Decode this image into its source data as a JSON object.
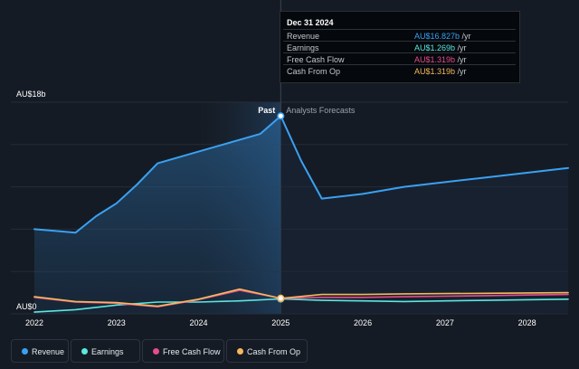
{
  "chart_data": {
    "type": "line",
    "y_axis_labels": {
      "top": "AU$18b",
      "bottom": "AU$0"
    },
    "ylim": [
      0,
      18
    ],
    "xlim": [
      2022.0,
      2028.5
    ],
    "x_ticks": [
      "2022",
      "2023",
      "2024",
      "2025",
      "2026",
      "2027",
      "2028"
    ],
    "annotations": {
      "past": "Past",
      "forecast": "Analysts Forecasts",
      "divider_x": 2025.0
    },
    "series": [
      {
        "name": "Revenue",
        "color": "#3aa1f2",
        "points": [
          [
            2022.0,
            7.2
          ],
          [
            2022.25,
            7.05
          ],
          [
            2022.5,
            6.9
          ],
          [
            2022.75,
            8.3
          ],
          [
            2023.0,
            9.4
          ],
          [
            2023.25,
            11.0
          ],
          [
            2023.5,
            12.8
          ],
          [
            2023.75,
            13.3
          ],
          [
            2024.0,
            13.8
          ],
          [
            2024.25,
            14.3
          ],
          [
            2024.5,
            14.8
          ],
          [
            2024.75,
            15.3
          ],
          [
            2025.0,
            16.827
          ],
          [
            2025.25,
            13.0
          ],
          [
            2025.5,
            9.8
          ],
          [
            2026.0,
            10.2
          ],
          [
            2026.5,
            10.8
          ],
          [
            2027.0,
            11.2
          ],
          [
            2027.5,
            11.6
          ],
          [
            2028.0,
            12.0
          ],
          [
            2028.5,
            12.4
          ]
        ]
      },
      {
        "name": "Earnings",
        "color": "#5ce6e0",
        "points": [
          [
            2022.0,
            0.15
          ],
          [
            2022.5,
            0.35
          ],
          [
            2023.0,
            0.75
          ],
          [
            2023.5,
            1.0
          ],
          [
            2024.0,
            1.0
          ],
          [
            2024.5,
            1.1
          ],
          [
            2025.0,
            1.269
          ],
          [
            2025.5,
            1.15
          ],
          [
            2026.0,
            1.1
          ],
          [
            2026.5,
            1.05
          ],
          [
            2027.0,
            1.1
          ],
          [
            2027.5,
            1.15
          ],
          [
            2028.0,
            1.2
          ],
          [
            2028.5,
            1.25
          ]
        ]
      },
      {
        "name": "Free Cash Flow",
        "color": "#e64c8a",
        "points": [
          [
            2022.0,
            1.4
          ],
          [
            2022.5,
            1.0
          ],
          [
            2023.0,
            0.9
          ],
          [
            2023.5,
            0.6
          ],
          [
            2024.0,
            1.2
          ],
          [
            2024.5,
            2.0
          ],
          [
            2025.0,
            1.319
          ],
          [
            2025.5,
            1.4
          ],
          [
            2026.0,
            1.4
          ],
          [
            2026.5,
            1.45
          ],
          [
            2027.0,
            1.5
          ],
          [
            2027.5,
            1.55
          ],
          [
            2028.0,
            1.6
          ],
          [
            2028.5,
            1.65
          ]
        ]
      },
      {
        "name": "Cash From Op",
        "color": "#f5b85e",
        "points": [
          [
            2022.0,
            1.45
          ],
          [
            2022.5,
            1.05
          ],
          [
            2023.0,
            0.95
          ],
          [
            2023.5,
            0.65
          ],
          [
            2024.0,
            1.25
          ],
          [
            2024.5,
            2.1
          ],
          [
            2025.0,
            1.319
          ],
          [
            2025.5,
            1.65
          ],
          [
            2026.0,
            1.65
          ],
          [
            2026.5,
            1.7
          ],
          [
            2027.0,
            1.72
          ],
          [
            2027.5,
            1.75
          ],
          [
            2028.0,
            1.78
          ],
          [
            2028.5,
            1.8
          ]
        ]
      }
    ]
  },
  "tooltip": {
    "date": "Dec 31 2024",
    "rows": [
      {
        "label": "Revenue",
        "value": "AU$16.827b",
        "unit": " /yr",
        "color": "#3aa1f2"
      },
      {
        "label": "Earnings",
        "value": "AU$1.269b",
        "unit": " /yr",
        "color": "#5ce6e0"
      },
      {
        "label": "Free Cash Flow",
        "value": "AU$1.319b",
        "unit": " /yr",
        "color": "#e64c8a"
      },
      {
        "label": "Cash From Op",
        "value": "AU$1.319b",
        "unit": " /yr",
        "color": "#f5b85e"
      }
    ]
  },
  "legend": [
    {
      "label": "Revenue",
      "color": "#3aa1f2"
    },
    {
      "label": "Earnings",
      "color": "#5ce6e0"
    },
    {
      "label": "Free Cash Flow",
      "color": "#e64c8a"
    },
    {
      "label": "Cash From Op",
      "color": "#f5b85e"
    }
  ]
}
